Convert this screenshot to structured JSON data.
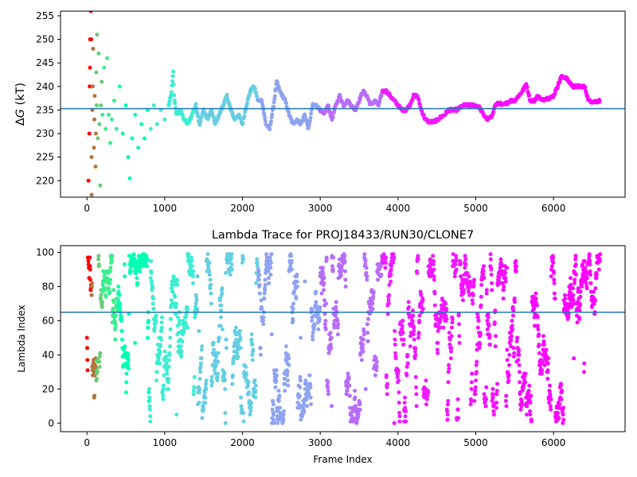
{
  "chart_data": [
    {
      "type": "scatter",
      "title": "",
      "xlabel": "",
      "ylabel": "ΔG (kT)",
      "ylabel_symbol": "Δ",
      "ylabel_var": "G",
      "ylabel_unit": " (kT)",
      "xlim": [
        -340,
        6920
      ],
      "ylim": [
        216.5,
        256
      ],
      "xticks": [
        0,
        1000,
        2000,
        3000,
        4000,
        5000,
        6000
      ],
      "yticks": [
        220,
        225,
        230,
        235,
        240,
        245,
        250,
        255
      ],
      "hline": 235.3,
      "hline_color": "#1f77b4",
      "colormap": "rainbow (early frames red, late frames violet)",
      "grid": false,
      "x_max_frame": 6600,
      "early_points": [
        [
          20,
          220
        ],
        [
          30,
          230
        ],
        [
          35,
          240
        ],
        [
          40,
          244
        ],
        [
          40,
          250
        ],
        [
          50,
          256
        ],
        [
          55,
          250
        ],
        [
          60,
          217
        ],
        [
          60,
          225
        ],
        [
          70,
          235
        ],
        [
          75,
          240
        ],
        [
          80,
          248
        ],
        [
          90,
          227
        ],
        [
          95,
          233
        ],
        [
          100,
          238
        ],
        [
          110,
          223
        ],
        [
          115,
          230
        ],
        [
          120,
          243
        ],
        [
          125,
          236
        ],
        [
          130,
          251
        ],
        [
          140,
          229
        ],
        [
          150,
          247
        ],
        [
          160,
          232
        ],
        [
          170,
          219
        ],
        [
          180,
          236
        ],
        [
          190,
          241
        ],
        [
          200,
          234
        ],
        [
          220,
          244
        ],
        [
          240,
          231
        ],
        [
          260,
          246
        ],
        [
          280,
          234
        ],
        [
          300,
          228
        ],
        [
          320,
          233
        ],
        [
          350,
          237
        ],
        [
          380,
          231
        ],
        [
          420,
          240
        ],
        [
          460,
          230
        ],
        [
          500,
          236
        ],
        [
          530,
          225
        ],
        [
          550,
          220.5
        ],
        [
          580,
          229
        ],
        [
          620,
          234
        ],
        [
          660,
          227
        ],
        [
          700,
          232
        ],
        [
          740,
          229
        ],
        [
          780,
          235
        ],
        [
          820,
          231
        ],
        [
          860,
          236
        ],
        [
          900,
          232
        ],
        [
          950,
          235
        ],
        [
          1000,
          233
        ],
        [
          1050,
          236
        ]
      ],
      "trace": [
        [
          1050,
          236
        ],
        [
          1080,
          238
        ],
        [
          1100,
          241
        ],
        [
          1110,
          243
        ],
        [
          1120,
          238
        ],
        [
          1150,
          234
        ],
        [
          1200,
          235
        ],
        [
          1250,
          233
        ],
        [
          1300,
          232
        ],
        [
          1350,
          234
        ],
        [
          1400,
          236
        ],
        [
          1450,
          232
        ],
        [
          1500,
          235
        ],
        [
          1550,
          233
        ],
        [
          1600,
          235
        ],
        [
          1650,
          232
        ],
        [
          1700,
          234
        ],
        [
          1750,
          236
        ],
        [
          1800,
          238
        ],
        [
          1850,
          235
        ],
        [
          1900,
          233
        ],
        [
          1950,
          234
        ],
        [
          2000,
          232
        ],
        [
          2050,
          236
        ],
        [
          2100,
          239
        ],
        [
          2150,
          240
        ],
        [
          2200,
          237
        ],
        [
          2250,
          237
        ],
        [
          2300,
          232
        ],
        [
          2350,
          231
        ],
        [
          2400,
          236
        ],
        [
          2440,
          241
        ],
        [
          2480,
          239
        ],
        [
          2550,
          237
        ],
        [
          2600,
          234
        ],
        [
          2650,
          232
        ],
        [
          2700,
          233
        ],
        [
          2750,
          232
        ],
        [
          2800,
          234
        ],
        [
          2850,
          231
        ],
        [
          2900,
          236
        ],
        [
          2950,
          236
        ],
        [
          3000,
          235
        ],
        [
          3050,
          234
        ],
        [
          3100,
          236
        ],
        [
          3150,
          233
        ],
        [
          3200,
          236
        ],
        [
          3250,
          238
        ],
        [
          3300,
          236
        ],
        [
          3350,
          237
        ],
        [
          3400,
          236
        ],
        [
          3450,
          235
        ],
        [
          3500,
          237
        ],
        [
          3550,
          239
        ],
        [
          3600,
          238
        ],
        [
          3650,
          236
        ],
        [
          3700,
          237
        ],
        [
          3750,
          236
        ],
        [
          3800,
          239
        ],
        [
          3850,
          239
        ],
        [
          3900,
          238
        ],
        [
          3950,
          237
        ],
        [
          4000,
          236
        ],
        [
          4050,
          235
        ],
        [
          4100,
          235
        ],
        [
          4150,
          236
        ],
        [
          4200,
          238
        ],
        [
          4250,
          238
        ],
        [
          4300,
          235
        ],
        [
          4350,
          233
        ],
        [
          4400,
          232.5
        ],
        [
          4450,
          232.5
        ],
        [
          4500,
          232.8
        ],
        [
          4550,
          233.5
        ],
        [
          4600,
          234
        ],
        [
          4650,
          235
        ],
        [
          4700,
          235
        ],
        [
          4750,
          235
        ],
        [
          4800,
          235.5
        ],
        [
          4850,
          236
        ],
        [
          4900,
          236
        ],
        [
          4950,
          236
        ],
        [
          5000,
          236
        ],
        [
          5050,
          235.5
        ],
        [
          5100,
          234
        ],
        [
          5150,
          233
        ],
        [
          5200,
          233.5
        ],
        [
          5250,
          236
        ],
        [
          5300,
          236.5
        ],
        [
          5350,
          236
        ],
        [
          5400,
          236.5
        ],
        [
          5450,
          237
        ],
        [
          5500,
          237
        ],
        [
          5550,
          238
        ],
        [
          5600,
          239
        ],
        [
          5650,
          240.5
        ],
        [
          5700,
          237
        ],
        [
          5750,
          237
        ],
        [
          5800,
          238
        ],
        [
          5850,
          237
        ],
        [
          5900,
          237.5
        ],
        [
          5950,
          237.5
        ],
        [
          6000,
          238
        ],
        [
          6050,
          240
        ],
        [
          6100,
          242
        ],
        [
          6150,
          242
        ],
        [
          6200,
          241
        ],
        [
          6250,
          240
        ],
        [
          6300,
          240
        ],
        [
          6350,
          240
        ],
        [
          6400,
          240
        ],
        [
          6450,
          237
        ],
        [
          6500,
          236.8
        ],
        [
          6550,
          236.8
        ],
        [
          6600,
          237
        ]
      ]
    },
    {
      "type": "scatter",
      "title": "Lambda Trace for PROJ18433/RUN30/CLONE7",
      "xlabel": "Frame Index",
      "ylabel": "Lambda Index",
      "xlim": [
        -340,
        6920
      ],
      "ylim": [
        -5,
        104
      ],
      "xticks": [
        0,
        1000,
        2000,
        3000,
        4000,
        5000,
        6000
      ],
      "yticks": [
        0,
        20,
        40,
        60,
        80,
        100
      ],
      "hline": 65,
      "hline_color": "#1f77b4",
      "colormap": "rainbow (early frames red, late frames violet)",
      "grid": false,
      "x_max_frame": 6600,
      "lambda_range": [
        0,
        99
      ],
      "sampling_frame_count": 6600
    }
  ]
}
